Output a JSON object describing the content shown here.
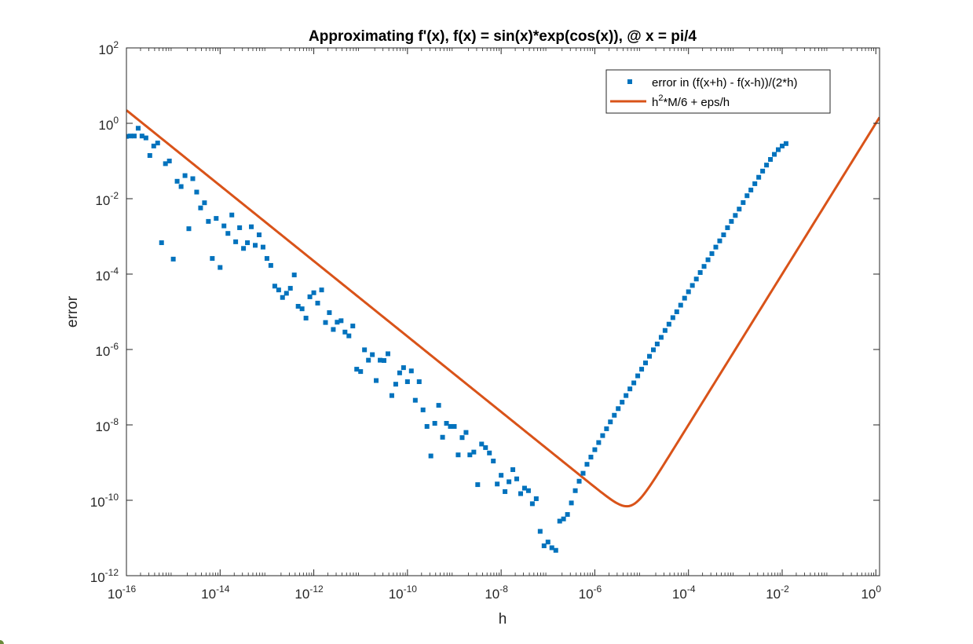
{
  "chart_data": {
    "type": "scatter",
    "title": "Approximating f'(x), f(x) = sin(x)*exp(cos(x)), @ x = pi/4",
    "xlabel": "h",
    "ylabel": "error",
    "xscale": "log",
    "yscale": "log",
    "xlim": [
      1e-16,
      1.2
    ],
    "ylim": [
      1e-12,
      100
    ],
    "grid": false,
    "legend_position": "top-right",
    "x_ticks": [
      {
        "base": "10",
        "exp": "-16",
        "value": 1e-16
      },
      {
        "base": "10",
        "exp": "-14",
        "value": 1e-14
      },
      {
        "base": "10",
        "exp": "-12",
        "value": 1e-12
      },
      {
        "base": "10",
        "exp": "-10",
        "value": 1e-10
      },
      {
        "base": "10",
        "exp": "-8",
        "value": 1e-08
      },
      {
        "base": "10",
        "exp": "-6",
        "value": 1e-06
      },
      {
        "base": "10",
        "exp": "-4",
        "value": 0.0001
      },
      {
        "base": "10",
        "exp": "-2",
        "value": 0.01
      },
      {
        "base": "10",
        "exp": "0",
        "value": 1
      }
    ],
    "y_ticks": [
      {
        "base": "10",
        "exp": "2",
        "value": 100
      },
      {
        "base": "10",
        "exp": "0",
        "value": 1
      },
      {
        "base": "10",
        "exp": "-2",
        "value": 0.01
      },
      {
        "base": "10",
        "exp": "-4",
        "value": 0.0001
      },
      {
        "base": "10",
        "exp": "-6",
        "value": 1e-06
      },
      {
        "base": "10",
        "exp": "-8",
        "value": 1e-08
      },
      {
        "base": "10",
        "exp": "-10",
        "value": 1e-10
      },
      {
        "base": "10",
        "exp": "-12",
        "value": 1e-12
      }
    ],
    "series": [
      {
        "name": "error in (f(x+h) - f(x-h))/(2*h)",
        "kind": "scatter",
        "marker": "square",
        "color": "#0072BD",
        "points": [
          [
            1e-16,
            0.45
          ],
          [
            1.21e-16,
            0.46
          ],
          [
            1.47e-16,
            0.46
          ],
          [
            1.78e-16,
            0.74
          ],
          [
            2.15e-16,
            0.46
          ],
          [
            2.61e-16,
            0.41
          ],
          [
            3.16e-16,
            0.14
          ],
          [
            3.83e-16,
            0.25
          ],
          [
            4.64e-16,
            0.3
          ],
          [
            5.62e-16,
            0.00068
          ],
          [
            6.81e-16,
            0.085
          ],
          [
            8.25e-16,
            0.1
          ],
          [
            1e-15,
            0.00025
          ],
          [
            1.21e-15,
            0.029
          ],
          [
            1.47e-15,
            0.021
          ],
          [
            1.78e-15,
            0.041
          ],
          [
            2.15e-15,
            0.0016
          ],
          [
            2.61e-15,
            0.034
          ],
          [
            3.16e-15,
            0.015
          ],
          [
            3.83e-15,
            0.0057
          ],
          [
            4.64e-15,
            0.0078
          ],
          [
            5.62e-15,
            0.0025
          ],
          [
            6.81e-15,
            0.00026
          ],
          [
            8.25e-15,
            0.003
          ],
          [
            1e-14,
            0.00015
          ],
          [
            1.21e-14,
            0.0019
          ],
          [
            1.47e-14,
            0.0012
          ],
          [
            1.78e-14,
            0.0037
          ],
          [
            2.15e-14,
            0.00072
          ],
          [
            2.61e-14,
            0.0017
          ],
          [
            3.16e-14,
            0.00048
          ],
          [
            3.83e-14,
            0.00068
          ],
          [
            4.64e-14,
            0.0018
          ],
          [
            5.62e-14,
            0.00058
          ],
          [
            6.81e-14,
            0.0011
          ],
          [
            8.25e-14,
            0.00052
          ],
          [
            1e-13,
            0.00026
          ],
          [
            1.21e-13,
            0.00017
          ],
          [
            1.47e-13,
            4.8e-05
          ],
          [
            1.78e-13,
            3.8e-05
          ],
          [
            2.15e-13,
            2.4e-05
          ],
          [
            2.61e-13,
            3.1e-05
          ],
          [
            3.16e-13,
            4.2e-05
          ],
          [
            3.83e-13,
            9.5e-05
          ],
          [
            4.64e-13,
            1.4e-05
          ],
          [
            5.62e-13,
            1.2e-05
          ],
          [
            6.81e-13,
            6.8e-06
          ],
          [
            8.25e-13,
            2.5e-05
          ],
          [
            1e-12,
            3.2e-05
          ],
          [
            1.21e-12,
            1.7e-05
          ],
          [
            1.47e-12,
            3.8e-05
          ],
          [
            1.78e-12,
            5.2e-06
          ],
          [
            2.15e-12,
            9.5e-06
          ],
          [
            2.61e-12,
            3.4e-06
          ],
          [
            3.16e-12,
            5.3e-06
          ],
          [
            3.83e-12,
            5.8e-06
          ],
          [
            4.64e-12,
            2.9e-06
          ],
          [
            5.62e-12,
            2.3e-06
          ],
          [
            6.81e-12,
            4.2e-06
          ],
          [
            8.25e-12,
            3e-07
          ],
          [
            1e-11,
            2.6e-07
          ],
          [
            1.21e-11,
            9.8e-07
          ],
          [
            1.47e-11,
            5.2e-07
          ],
          [
            1.78e-11,
            7.3e-07
          ],
          [
            2.15e-11,
            1.5e-07
          ],
          [
            2.61e-11,
            5.2e-07
          ],
          [
            3.16e-11,
            5.1e-07
          ],
          [
            3.83e-11,
            7.7e-07
          ],
          [
            4.64e-11,
            6e-08
          ],
          [
            5.62e-11,
            1.2e-07
          ],
          [
            6.81e-11,
            2.4e-07
          ],
          [
            8.25e-11,
            3.3e-07
          ],
          [
            1e-10,
            1.4e-07
          ],
          [
            1.21e-10,
            2.7e-07
          ],
          [
            1.47e-10,
            4.5e-08
          ],
          [
            1.78e-10,
            1.4e-07
          ],
          [
            2.15e-10,
            2.5e-08
          ],
          [
            2.61e-10,
            9.1e-09
          ],
          [
            3.16e-10,
            1.5e-09
          ],
          [
            3.83e-10,
            1.1e-08
          ],
          [
            4.64e-10,
            3.3e-08
          ],
          [
            5.62e-10,
            4.7e-09
          ],
          [
            6.81e-10,
            1.1e-08
          ],
          [
            8.25e-10,
            9.1e-09
          ],
          [
            1e-09,
            9.1e-09
          ],
          [
            1.21e-09,
            1.6e-09
          ],
          [
            1.47e-09,
            4.6e-09
          ],
          [
            1.78e-09,
            6.3e-09
          ],
          [
            2.15e-09,
            1.6e-09
          ],
          [
            2.61e-09,
            1.9e-09
          ],
          [
            3.16e-09,
            2.6e-10
          ],
          [
            3.83e-09,
            3.1e-09
          ],
          [
            4.64e-09,
            2.5e-09
          ],
          [
            5.62e-09,
            1.8e-09
          ],
          [
            6.81e-09,
            1.1e-09
          ],
          [
            8.25e-09,
            2.7e-10
          ],
          [
            1e-08,
            4.6e-10
          ],
          [
            1.21e-08,
            1.7e-10
          ],
          [
            1.47e-08,
            3.1e-10
          ],
          [
            1.78e-08,
            6.5e-10
          ],
          [
            2.15e-08,
            3.7e-10
          ],
          [
            2.61e-08,
            1.5e-10
          ],
          [
            3.16e-08,
            2.1e-10
          ],
          [
            3.83e-08,
            1.8e-10
          ],
          [
            4.64e-08,
            8.1e-11
          ],
          [
            5.62e-08,
            1.1e-10
          ],
          [
            6.81e-08,
            1.5e-11
          ],
          [
            8.25e-08,
            6.2e-12
          ],
          [
            1e-07,
            7.8e-12
          ],
          [
            1.21e-07,
            5.5e-12
          ],
          [
            1.47e-07,
            4.7e-12
          ],
          [
            1.78e-07,
            2.8e-11
          ],
          [
            2.15e-07,
            3.2e-11
          ],
          [
            2.61e-07,
            4.2e-11
          ],
          [
            3.16e-07,
            8.5e-11
          ],
          [
            3.83e-07,
            1.8e-10
          ],
          [
            4.64e-07,
            3.2e-10
          ],
          [
            5.62e-07,
            5.2e-10
          ],
          [
            6.81e-07,
            9e-10
          ],
          [
            8.25e-07,
            1.4e-09
          ],
          [
            1e-06,
            2.2e-09
          ],
          [
            1.21e-06,
            3.4e-09
          ],
          [
            1.47e-06,
            5.2e-09
          ],
          [
            1.78e-06,
            7.9e-09
          ],
          [
            2.15e-06,
            1.2e-08
          ],
          [
            2.61e-06,
            1.8e-08
          ],
          [
            3.16e-06,
            2.7e-08
          ],
          [
            3.83e-06,
            4e-08
          ],
          [
            4.64e-06,
            6e-08
          ],
          [
            5.62e-06,
            9e-08
          ],
          [
            6.81e-06,
            1.3e-07
          ],
          [
            8.25e-06,
            2e-07
          ],
          [
            1e-05,
            3e-07
          ],
          [
            1.21e-05,
            4.4e-07
          ],
          [
            1.47e-05,
            6.6e-07
          ],
          [
            1.78e-05,
            9.8e-07
          ],
          [
            2.15e-05,
            1.4e-06
          ],
          [
            2.61e-05,
            2.1e-06
          ],
          [
            3.16e-05,
            3.2e-06
          ],
          [
            3.83e-05,
            4.7e-06
          ],
          [
            4.64e-05,
            7e-06
          ],
          [
            5.62e-05,
            1e-05
          ],
          [
            6.81e-05,
            1.5e-05
          ],
          [
            8.25e-05,
            2.3e-05
          ],
          [
            0.0001,
            3.4e-05
          ],
          [
            0.000121,
            5e-05
          ],
          [
            0.000147,
            7.4e-05
          ],
          [
            0.000178,
            0.00011
          ],
          [
            0.000215,
            0.00016
          ],
          [
            0.000261,
            0.00024
          ],
          [
            0.000316,
            0.00035
          ],
          [
            0.000383,
            0.00052
          ],
          [
            0.000464,
            0.00076
          ],
          [
            0.000562,
            0.0011
          ],
          [
            0.000681,
            0.0017
          ],
          [
            0.000825,
            0.0025
          ],
          [
            0.001,
            0.0036
          ],
          [
            0.00121,
            0.0053
          ],
          [
            0.00147,
            0.0079
          ],
          [
            0.00178,
            0.012
          ],
          [
            0.00215,
            0.017
          ],
          [
            0.00261,
            0.025
          ],
          [
            0.00316,
            0.037
          ],
          [
            0.00383,
            0.054
          ],
          [
            0.00464,
            0.078
          ],
          [
            0.00562,
            0.11
          ],
          [
            0.00681,
            0.15
          ],
          [
            0.00825,
            0.2
          ],
          [
            0.01,
            0.25
          ],
          [
            0.0121,
            0.29
          ]
        ]
      },
      {
        "name": "h^2*M/6 + eps/h",
        "kind": "line",
        "color": "#D95319",
        "formula": {
          "M": 6.0,
          "eps": 2.22e-16
        }
      }
    ],
    "legend": [
      {
        "text": "error in (f(x+h) - f(x-h))/(2*h)",
        "kind": "marker"
      },
      {
        "text_main": "h",
        "text_sup": "2",
        "text_rest": "*M/6 + eps/h",
        "kind": "line"
      }
    ]
  }
}
